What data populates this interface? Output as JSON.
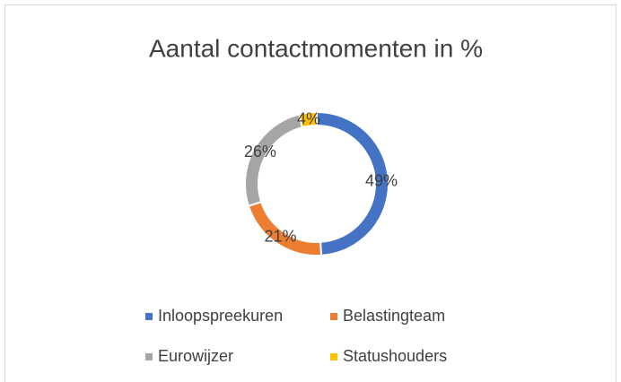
{
  "chart_data": {
    "type": "donut",
    "title": "Aantal contactmomenten in %",
    "categories": [
      "Inloopspreekuren",
      "Belastingteam",
      "Eurowijzer",
      "Statushouders"
    ],
    "values": [
      49,
      21,
      26,
      4
    ],
    "value_labels": [
      "49%",
      "21%",
      "26%",
      "4%"
    ],
    "colors": [
      "#4472c4",
      "#ed7d31",
      "#a5a5a5",
      "#ffc000"
    ],
    "legend": "bottom"
  }
}
